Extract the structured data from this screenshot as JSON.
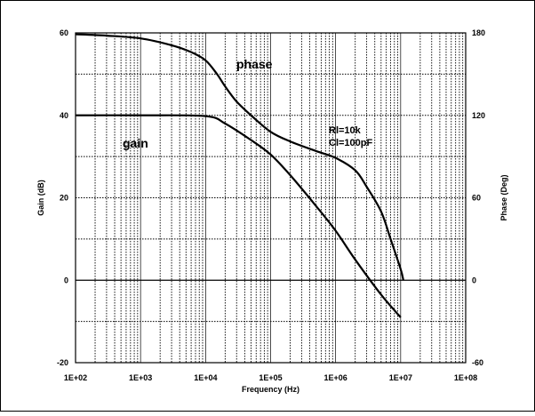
{
  "chart_data": {
    "type": "line",
    "title": "",
    "xlabel": "Frequency (Hz)",
    "ylabel_left": "Gain (dB)",
    "ylabel_right": "Phase (Deg)",
    "x_scale": "log",
    "xlim": [
      100,
      100000000
    ],
    "ylim_left": [
      -20,
      60
    ],
    "ylim_right": [
      -60,
      180
    ],
    "grid": true,
    "x_ticks": [
      "1E+02",
      "1E+03",
      "1E+04",
      "1E+05",
      "1E+06",
      "1E+07",
      "1E+08"
    ],
    "y_ticks_left": [
      "-20",
      "0",
      "20",
      "40",
      "60"
    ],
    "y_ticks_right": [
      "-60",
      "0",
      "60",
      "120",
      "180"
    ],
    "annotations": {
      "phase_label": "phase",
      "gain_label": "gain",
      "rl_label": "Rl=10k",
      "cl_label": "Cl=100pF"
    },
    "series": [
      {
        "name": "gain",
        "axis": "left",
        "x": [
          100,
          1000,
          10000,
          20000,
          50000,
          100000,
          200000,
          500000,
          1000000,
          2000000,
          5000000,
          10000000
        ],
        "y": [
          40,
          40,
          39.8,
          38,
          34,
          30.5,
          25.5,
          18,
          12,
          5,
          -3.5,
          -9
        ]
      },
      {
        "name": "phase",
        "axis": "right",
        "x": [
          100,
          300,
          1000,
          3000,
          6000,
          10000,
          15000,
          20000,
          30000,
          50000,
          100000,
          200000,
          500000,
          1000000,
          2000000,
          3000000,
          5000000,
          7000000,
          10000000,
          11000000
        ],
        "y": [
          179,
          178,
          176,
          171,
          166,
          160,
          150,
          141,
          130,
          120,
          108,
          101,
          94,
          89,
          80,
          68,
          50,
          30,
          8,
          0
        ]
      }
    ]
  }
}
